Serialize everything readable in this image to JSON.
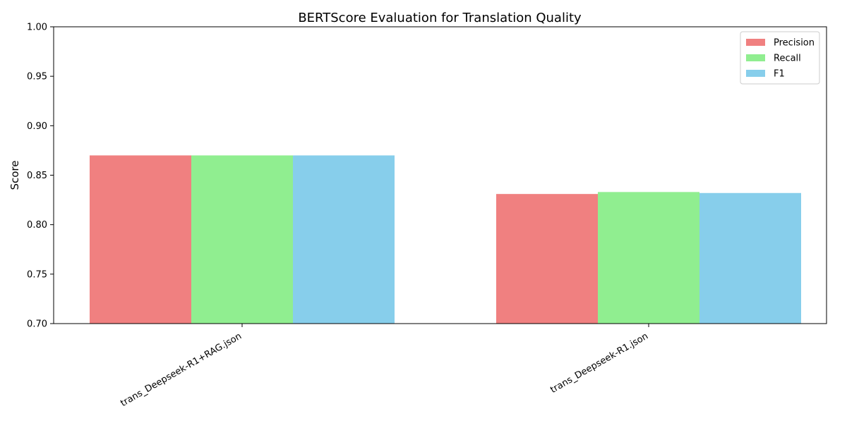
{
  "chart_data": {
    "type": "bar",
    "title": "BERTScore Evaluation for Translation Quality",
    "xlabel": "",
    "ylabel": "Score",
    "ylim": [
      0.7,
      1.0
    ],
    "yticks": [
      0.7,
      0.75,
      0.8,
      0.85,
      0.9,
      0.95,
      1.0
    ],
    "categories": [
      "trans_Deepseek-R1+RAG.json",
      "trans_Deepseek-R1.json"
    ],
    "series": [
      {
        "name": "Precision",
        "values": [
          0.87,
          0.831
        ],
        "color": "#F08080"
      },
      {
        "name": "Recall",
        "values": [
          0.87,
          0.833
        ],
        "color": "#90EE90"
      },
      {
        "name": "F1",
        "values": [
          0.87,
          0.832
        ],
        "color": "#87CEEB"
      }
    ],
    "legend": "top-right",
    "grid": false
  }
}
